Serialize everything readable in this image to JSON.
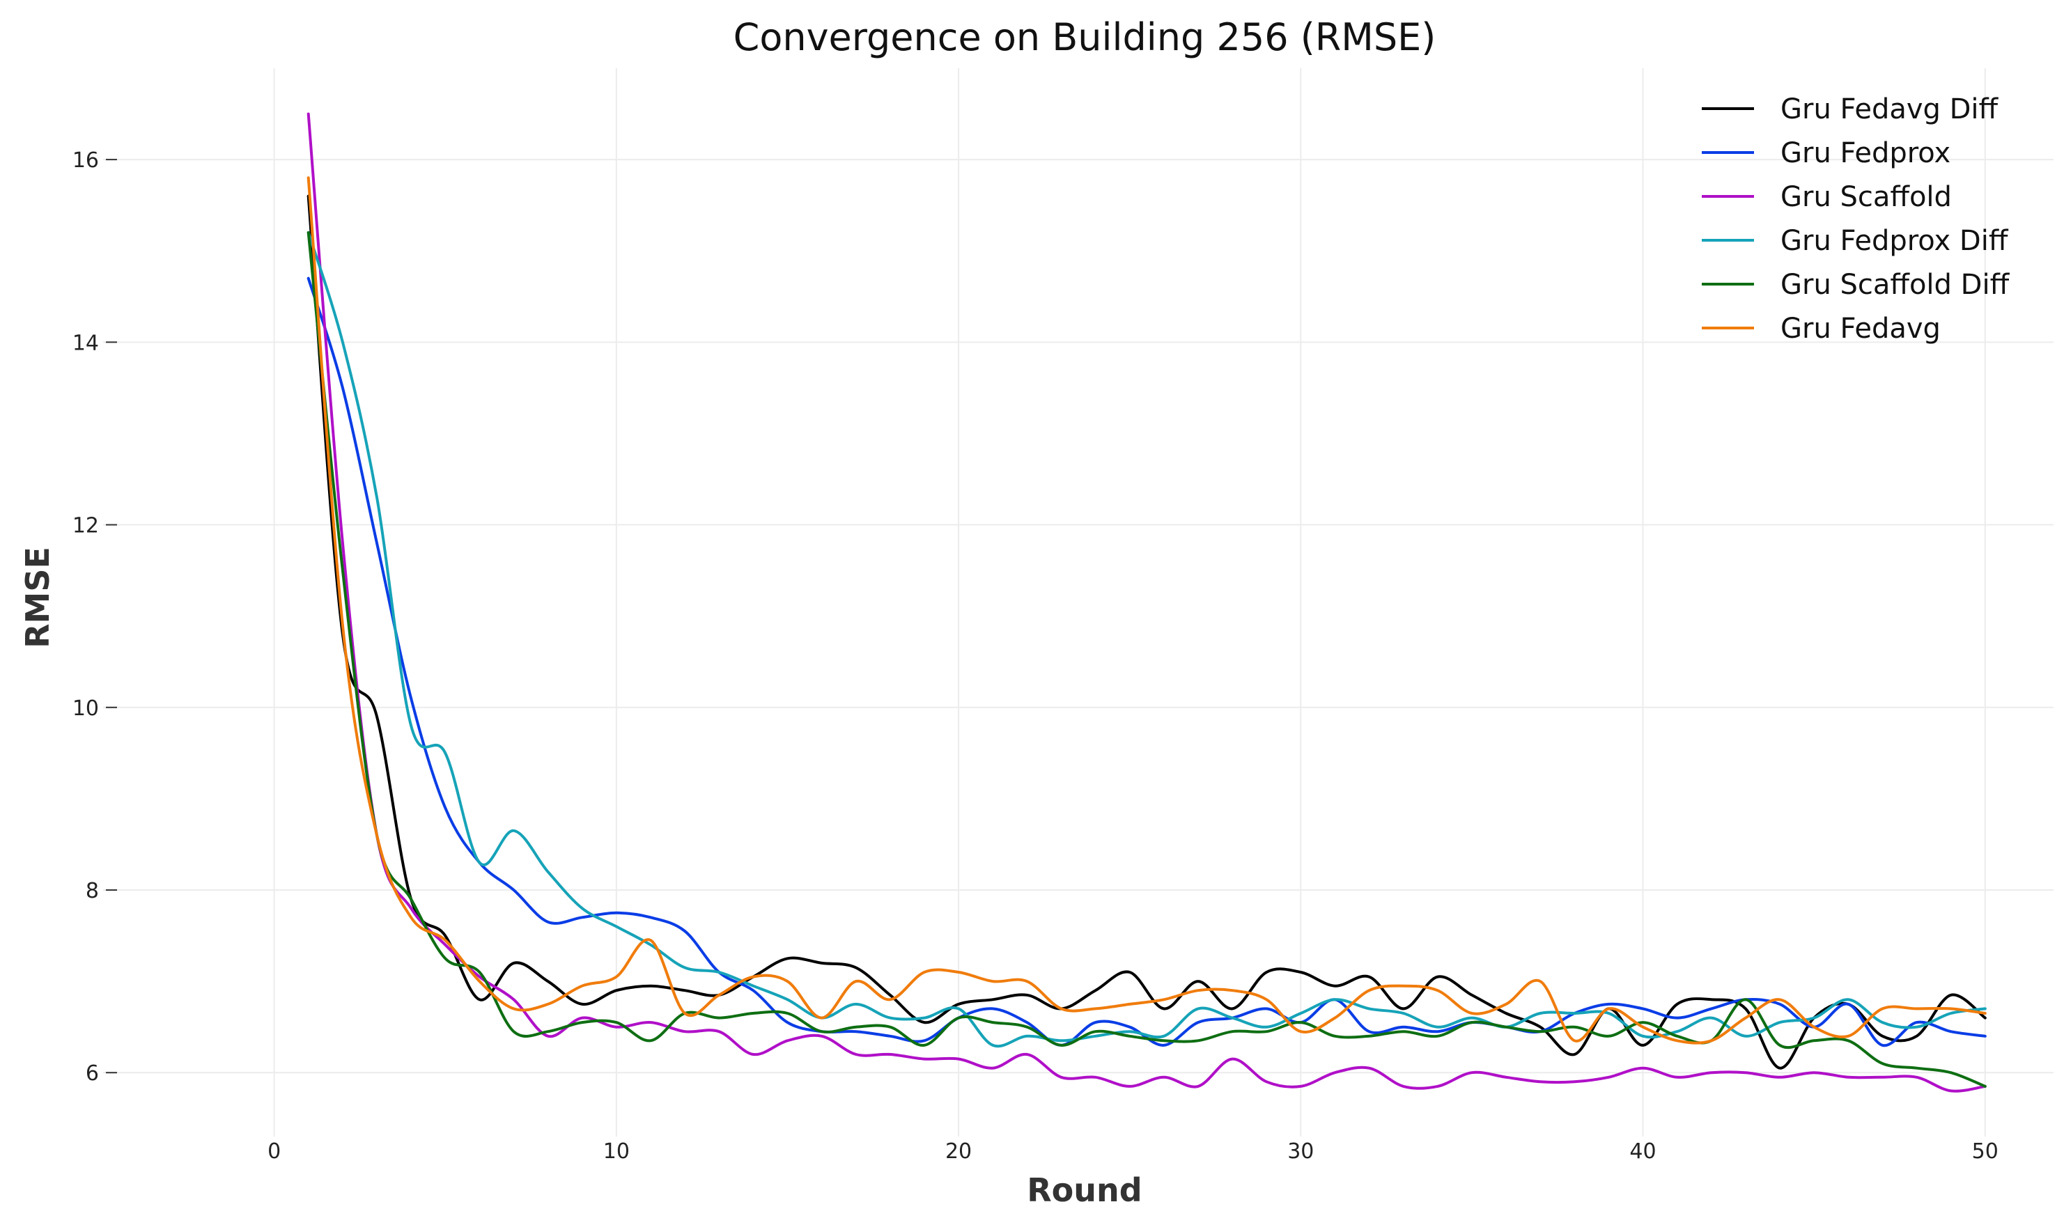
{
  "chart_data": {
    "type": "line",
    "title": "Convergence on Building 256 (RMSE)",
    "xlabel": "Round",
    "ylabel": "RMSE",
    "xlim": [
      -5,
      52
    ],
    "ylim": [
      5.3,
      17.0
    ],
    "xticks": [
      0,
      10,
      20,
      30,
      40,
      50
    ],
    "yticks": [
      6,
      8,
      10,
      12,
      14,
      16
    ],
    "grid": true,
    "legend_position": "top-right",
    "x": [
      1,
      2,
      3,
      4,
      5,
      6,
      7,
      8,
      9,
      10,
      11,
      12,
      13,
      14,
      15,
      16,
      17,
      18,
      19,
      20,
      21,
      22,
      23,
      24,
      25,
      26,
      27,
      28,
      29,
      30,
      31,
      32,
      33,
      34,
      35,
      36,
      37,
      38,
      39,
      40,
      41,
      42,
      43,
      44,
      45,
      46,
      47,
      48,
      49,
      50
    ],
    "series": [
      {
        "name": "Gru Fedavg Diff",
        "color": "#000000",
        "values": [
          15.6,
          10.8,
          9.9,
          7.9,
          7.5,
          6.8,
          7.2,
          7.0,
          6.75,
          6.9,
          6.95,
          6.9,
          6.85,
          7.05,
          7.25,
          7.2,
          7.15,
          6.85,
          6.55,
          6.75,
          6.8,
          6.85,
          6.7,
          6.9,
          7.1,
          6.7,
          7.0,
          6.7,
          7.1,
          7.1,
          6.95,
          7.05,
          6.7,
          7.05,
          6.85,
          6.65,
          6.5,
          6.2,
          6.7,
          6.3,
          6.75,
          6.8,
          6.7,
          6.05,
          6.6,
          6.75,
          6.4,
          6.4,
          6.85,
          6.6
        ]
      },
      {
        "name": "Gru Fedprox",
        "color": "#0a3de6",
        "values": [
          14.7,
          13.5,
          11.8,
          10.1,
          8.9,
          8.3,
          8.0,
          7.65,
          7.7,
          7.75,
          7.7,
          7.55,
          7.1,
          6.9,
          6.55,
          6.45,
          6.45,
          6.4,
          6.35,
          6.6,
          6.7,
          6.55,
          6.3,
          6.55,
          6.5,
          6.3,
          6.55,
          6.6,
          6.7,
          6.55,
          6.8,
          6.45,
          6.5,
          6.45,
          6.55,
          6.5,
          6.45,
          6.65,
          6.75,
          6.7,
          6.6,
          6.7,
          6.8,
          6.75,
          6.5,
          6.75,
          6.3,
          6.55,
          6.45,
          6.4
        ]
      },
      {
        "name": "Gru Scaffold",
        "color": "#b010c8",
        "values": [
          16.5,
          11.8,
          8.6,
          7.8,
          7.4,
          7.05,
          6.8,
          6.4,
          6.6,
          6.5,
          6.55,
          6.45,
          6.45,
          6.2,
          6.35,
          6.4,
          6.2,
          6.2,
          6.15,
          6.15,
          6.05,
          6.2,
          5.95,
          5.95,
          5.85,
          5.95,
          5.85,
          6.15,
          5.9,
          5.85,
          6.0,
          6.05,
          5.85,
          5.85,
          6.0,
          5.95,
          5.9,
          5.9,
          5.95,
          6.05,
          5.95,
          6.0,
          6.0,
          5.95,
          6.0,
          5.95,
          5.95,
          5.95,
          5.8,
          5.85
        ]
      },
      {
        "name": "Gru Fedprox Diff",
        "color": "#16a3b8",
        "values": [
          15.2,
          14.0,
          12.3,
          9.8,
          9.5,
          8.3,
          8.65,
          8.2,
          7.8,
          7.6,
          7.4,
          7.15,
          7.1,
          6.95,
          6.8,
          6.6,
          6.75,
          6.6,
          6.6,
          6.7,
          6.3,
          6.4,
          6.35,
          6.4,
          6.45,
          6.4,
          6.7,
          6.6,
          6.5,
          6.65,
          6.8,
          6.7,
          6.65,
          6.5,
          6.6,
          6.5,
          6.65,
          6.65,
          6.65,
          6.4,
          6.45,
          6.6,
          6.4,
          6.55,
          6.6,
          6.8,
          6.55,
          6.5,
          6.65,
          6.7
        ]
      },
      {
        "name": "Gru Scaffold Diff",
        "color": "#0e6e12",
        "values": [
          15.2,
          11.5,
          8.6,
          7.9,
          7.25,
          7.1,
          6.45,
          6.45,
          6.55,
          6.55,
          6.35,
          6.65,
          6.6,
          6.65,
          6.65,
          6.45,
          6.5,
          6.5,
          6.3,
          6.6,
          6.55,
          6.5,
          6.3,
          6.45,
          6.4,
          6.35,
          6.35,
          6.45,
          6.45,
          6.55,
          6.4,
          6.4,
          6.45,
          6.4,
          6.55,
          6.5,
          6.45,
          6.5,
          6.4,
          6.55,
          6.4,
          6.35,
          6.8,
          6.3,
          6.35,
          6.35,
          6.1,
          6.05,
          6.0,
          5.85
        ]
      },
      {
        "name": "Gru Fedavg",
        "color": "#f07c0c",
        "values": [
          15.8,
          10.9,
          8.6,
          7.7,
          7.45,
          7.0,
          6.7,
          6.75,
          6.95,
          7.05,
          7.45,
          6.65,
          6.85,
          7.05,
          7.0,
          6.6,
          7.0,
          6.8,
          7.1,
          7.1,
          7.0,
          7.0,
          6.7,
          6.7,
          6.75,
          6.8,
          6.9,
          6.9,
          6.8,
          6.45,
          6.6,
          6.9,
          6.95,
          6.9,
          6.65,
          6.75,
          7.0,
          6.35,
          6.7,
          6.5,
          6.35,
          6.35,
          6.6,
          6.8,
          6.5,
          6.4,
          6.7,
          6.7,
          6.7,
          6.65
        ]
      }
    ]
  }
}
